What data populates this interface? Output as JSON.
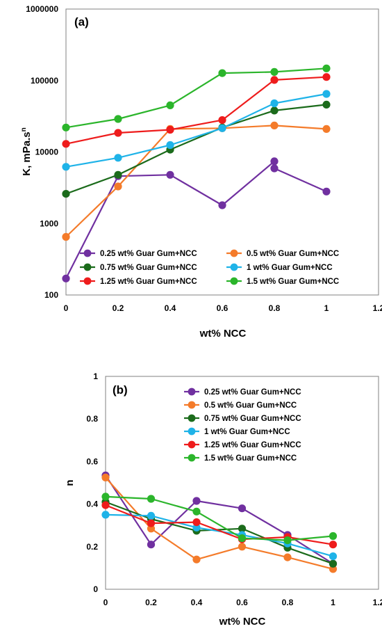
{
  "chart_data": [
    {
      "type": "line",
      "panel_label": "(a)",
      "xlabel": "wt% NCC",
      "ylabel": "K, mPa.s",
      "ylabel_superscript": "n",
      "y_scale": "log",
      "xlim": [
        0,
        1.2
      ],
      "ylim": [
        100,
        1000000
      ],
      "x_ticks": [
        "0",
        "0.2",
        "0.4",
        "0.6",
        "0.8",
        "1",
        "1.2"
      ],
      "y_ticks": [
        "100",
        "1000",
        "10000",
        "100000",
        "1000000"
      ],
      "grid": false,
      "legend_position": "bottom, inside plot, two columns",
      "series": [
        {
          "name": "0.25 wt% Guar Gum+NCC",
          "color": "#7030A0",
          "x": [
            0,
            0.2,
            0.4,
            0.6,
            0.8,
            0.8,
            1
          ],
          "y": [
            170,
            4600,
            4800,
            1800,
            7400,
            5900,
            2800
          ]
        },
        {
          "name": "0.5 wt% Guar Gum+NCC",
          "color": "#F47B2A",
          "x": [
            0,
            0.2,
            0.4,
            0.6,
            0.8,
            1
          ],
          "y": [
            650,
            3300,
            21000,
            21500,
            23500,
            21000
          ]
        },
        {
          "name": "0.75 wt% Guar Gum+NCC",
          "color": "#1B6B1B",
          "x": [
            0,
            0.2,
            0.4,
            0.6,
            0.8,
            1
          ],
          "y": [
            2600,
            4800,
            10800,
            22000,
            38000,
            46000
          ]
        },
        {
          "name": "1 wt% Guar Gum+NCC",
          "color": "#1FB3E8",
          "x": [
            0,
            0.2,
            0.4,
            0.6,
            0.8,
            1
          ],
          "y": [
            6200,
            8300,
            12500,
            21500,
            48000,
            65000
          ]
        },
        {
          "name": "1.25 wt% Guar Gum+NCC",
          "color": "#EE1C1C",
          "x": [
            0,
            0.2,
            0.4,
            0.6,
            0.8,
            1
          ],
          "y": [
            13000,
            18500,
            20500,
            28000,
            102000,
            112000
          ]
        },
        {
          "name": "1.5 wt% Guar Gum+NCC",
          "color": "#2BB52B",
          "x": [
            0,
            0.2,
            0.4,
            0.6,
            0.8,
            1
          ],
          "y": [
            22000,
            29000,
            45000,
            127000,
            132000,
            148000
          ]
        }
      ]
    },
    {
      "type": "line",
      "panel_label": "(b)",
      "xlabel": "wt% NCC",
      "ylabel": "n",
      "y_scale": "linear",
      "xlim": [
        0,
        1.2
      ],
      "ylim": [
        0,
        1
      ],
      "x_ticks": [
        "0",
        "0.2",
        "0.4",
        "0.6",
        "0.8",
        "1",
        "1.2"
      ],
      "y_ticks": [
        "0",
        "0.2",
        "0.4",
        "0.6",
        "0.8",
        "1"
      ],
      "grid": false,
      "legend_position": "top-right, inside plot, one column",
      "series": [
        {
          "name": "0.25 wt% Guar Gum+NCC",
          "color": "#7030A0",
          "x": [
            0,
            0.2,
            0.4,
            0.6,
            0.8,
            1
          ],
          "y": [
            0.535,
            0.21,
            0.415,
            0.38,
            0.255,
            0.12
          ]
        },
        {
          "name": "0.5 wt% Guar Gum+NCC",
          "color": "#F47B2A",
          "x": [
            0,
            0.2,
            0.4,
            0.6,
            0.8,
            1
          ],
          "y": [
            0.525,
            0.285,
            0.14,
            0.2,
            0.15,
            0.095
          ]
        },
        {
          "name": "0.75 wt% Guar Gum+NCC",
          "color": "#1B6B1B",
          "x": [
            0,
            0.2,
            0.4,
            0.6,
            0.8,
            1
          ],
          "y": [
            0.41,
            0.33,
            0.275,
            0.285,
            0.195,
            0.12
          ]
        },
        {
          "name": "1 wt% Guar Gum+NCC",
          "color": "#1FB3E8",
          "x": [
            0,
            0.2,
            0.4,
            0.6,
            0.8,
            1
          ],
          "y": [
            0.35,
            0.345,
            0.29,
            0.255,
            0.215,
            0.155
          ]
        },
        {
          "name": "1.25 wt% Guar Gum+NCC",
          "color": "#EE1C1C",
          "x": [
            0,
            0.2,
            0.4,
            0.6,
            0.8,
            1
          ],
          "y": [
            0.395,
            0.31,
            0.315,
            0.235,
            0.245,
            0.21
          ]
        },
        {
          "name": "1.5 wt% Guar Gum+NCC",
          "color": "#2BB52B",
          "x": [
            0,
            0.2,
            0.4,
            0.6,
            0.8,
            1
          ],
          "y": [
            0.435,
            0.425,
            0.365,
            0.24,
            0.23,
            0.25
          ]
        }
      ]
    }
  ]
}
